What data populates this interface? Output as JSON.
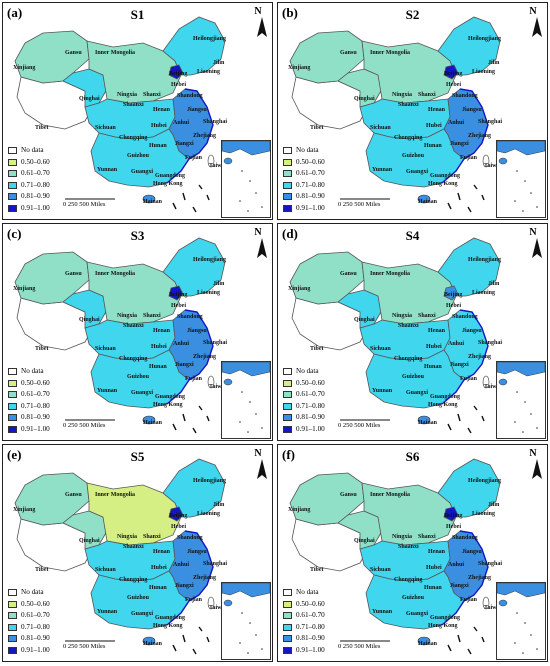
{
  "colors": {
    "no_data": "#ffffff",
    "c1": "#d6ef85",
    "c2": "#8fe0c6",
    "c3": "#3fd6ee",
    "c4": "#3b8fe0",
    "c5": "#1414c8",
    "outline": "#555555"
  },
  "north_label": "N",
  "scale_label": "0    250   500 Miles",
  "legend": [
    {
      "label": "No data",
      "color_key": "no_data"
    },
    {
      "label": "0.50–0.60",
      "color_key": "c1"
    },
    {
      "label": "0.61–0.70",
      "color_key": "c2"
    },
    {
      "label": "0.71–0.80",
      "color_key": "c3"
    },
    {
      "label": "0.81–0.90",
      "color_key": "c4"
    },
    {
      "label": "0.91–1.00",
      "color_key": "c5"
    }
  ],
  "panels": [
    {
      "letter": "(a)",
      "title": "S1",
      "levels": {
        "west": "c2",
        "qinghai": "c3",
        "tibet": "no_data",
        "north": "c2",
        "central": "c3",
        "south": "c3",
        "east": "c4",
        "beijing": "c5",
        "northeast": "c3"
      }
    },
    {
      "letter": "(b)",
      "title": "S2",
      "levels": {
        "west": "c2",
        "qinghai": "c2",
        "tibet": "no_data",
        "north": "c2",
        "central": "c3",
        "south": "c3",
        "east": "c4",
        "beijing": "c5",
        "northeast": "c3"
      }
    },
    {
      "letter": "(c)",
      "title": "S3",
      "levels": {
        "west": "c2",
        "qinghai": "c3",
        "tibet": "no_data",
        "north": "c2",
        "central": "c3",
        "south": "c3",
        "east": "c4",
        "beijing": "c5",
        "northeast": "c3"
      }
    },
    {
      "letter": "(d)",
      "title": "S4",
      "levels": {
        "west": "c2",
        "qinghai": "c3",
        "tibet": "no_data",
        "north": "c2",
        "central": "c3",
        "south": "c3",
        "east": "c3",
        "beijing": "c4",
        "northeast": "c3"
      }
    },
    {
      "letter": "(e)",
      "title": "S5",
      "levels": {
        "west": "c2",
        "qinghai": "c2",
        "tibet": "no_data",
        "north": "c1",
        "central": "c3",
        "south": "c3",
        "east": "c4",
        "beijing": "c5",
        "northeast": "c3"
      }
    },
    {
      "letter": "(f)",
      "title": "S6",
      "levels": {
        "west": "c2",
        "qinghai": "c2",
        "tibet": "no_data",
        "north": "c2",
        "central": "c3",
        "south": "c3",
        "east": "c4",
        "beijing": "c5",
        "northeast": "c3"
      }
    }
  ],
  "provinces": [
    "Xinjiang",
    "Gansu",
    "Inner Mongolia",
    "Heilongjiang",
    "Jilin",
    "Liaoning",
    "Beijing",
    "Hebei",
    "Qinghai",
    "Ningxia",
    "Shanxi",
    "Shandong",
    "Shaanxi",
    "Henan",
    "Jiangsu",
    "Tibet",
    "Sichuan",
    "Hubei",
    "Anhui",
    "Shanghai",
    "Chongqing",
    "Zhejiang",
    "Hunan",
    "Jiangxi",
    "Guizhou",
    "Fujian",
    "Yunnan",
    "Guangxi",
    "Guangdong",
    "Taiwan",
    "Hong Kong",
    "Hainan"
  ]
}
